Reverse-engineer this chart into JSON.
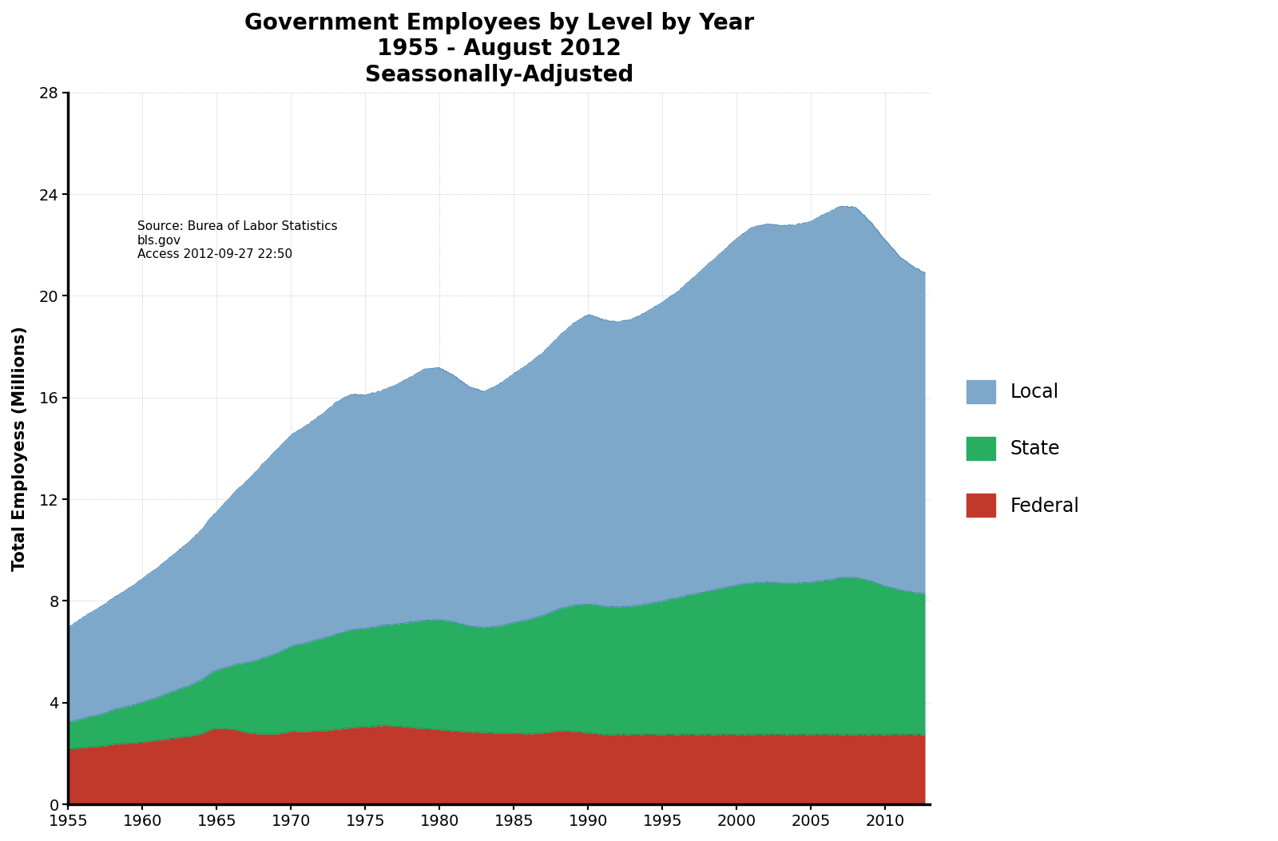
{
  "title": "Government Employees by Level by Year\n1955 - August 2012\nSeassonally-Adjusted",
  "xlabel": "",
  "ylabel": "Total Employess (Millions)",
  "source_text": "Source: Burea of Labor Statistics\nbls.gov\nAccess 2012-09-27 22:50",
  "xlim": [
    1955,
    2013
  ],
  "ylim": [
    0,
    28
  ],
  "yticks": [
    0,
    4,
    8,
    12,
    16,
    20,
    24,
    28
  ],
  "xticks": [
    1955,
    1960,
    1965,
    1970,
    1975,
    1980,
    1985,
    1990,
    1995,
    2000,
    2005,
    2010
  ],
  "colors": {
    "federal": "#c0392b",
    "state": "#27ae60",
    "local": "#7ea8c9",
    "local_line": "#4a86b8",
    "state_line": "#1a8a50",
    "grid": "#c8c8c8",
    "background": "#ffffff"
  },
  "legend": [
    {
      "label": "Local",
      "color": "#7ea8c9"
    },
    {
      "label": "State",
      "color": "#27ae60"
    },
    {
      "label": "Federal",
      "color": "#c0392b"
    }
  ],
  "federal_monthly": [
    2.187,
    2.19,
    2.194,
    2.198,
    2.201,
    2.205,
    2.208,
    2.212,
    2.215,
    2.219,
    2.222,
    2.226,
    2.23,
    2.234,
    2.238,
    2.241,
    2.245,
    2.249,
    2.253,
    2.256,
    2.26,
    2.264,
    2.268,
    2.271,
    2.275,
    2.28,
    2.285,
    2.29,
    2.295,
    2.3,
    2.31,
    2.32,
    2.33,
    2.34,
    2.35,
    2.36,
    2.365,
    2.37,
    2.375,
    2.38,
    2.38,
    2.382,
    2.384,
    2.386,
    2.388,
    2.39,
    2.392,
    2.394,
    2.396,
    2.398,
    2.4,
    2.403,
    2.406,
    2.41,
    2.415,
    2.42,
    2.425,
    2.43,
    2.435,
    2.44,
    2.448,
    2.456,
    2.464,
    2.472,
    2.48,
    2.486,
    2.492,
    2.498,
    2.504,
    2.51,
    2.516,
    2.522,
    2.528,
    2.534,
    2.54,
    2.546,
    2.552,
    2.558,
    2.564,
    2.57,
    2.576,
    2.582,
    2.588,
    2.594,
    2.6,
    2.606,
    2.612,
    2.618,
    2.624,
    2.63,
    2.636,
    2.642,
    2.648,
    2.654,
    2.66,
    2.666,
    2.672,
    2.678,
    2.684,
    2.69,
    2.696,
    2.702,
    2.714,
    2.726,
    2.738,
    2.75,
    2.762,
    2.774,
    2.79,
    2.81,
    2.83,
    2.854,
    2.874,
    2.894,
    2.914,
    2.934,
    2.954,
    2.974,
    2.994,
    2.99,
    2.99,
    2.988,
    2.986,
    2.984,
    2.982,
    2.98,
    2.976,
    2.972,
    2.968,
    2.964,
    2.96,
    2.956,
    2.952,
    2.948,
    2.944,
    2.94,
    2.928,
    2.916,
    2.904,
    2.892,
    2.88,
    2.868,
    2.856,
    2.844,
    2.832,
    2.82,
    2.808,
    2.796,
    2.8,
    2.796,
    2.792,
    2.788,
    2.784,
    2.78,
    2.778,
    2.776,
    2.774,
    2.772,
    2.77,
    2.768,
    2.766,
    2.764,
    2.762,
    2.76,
    2.76,
    2.762,
    2.764,
    2.766,
    2.77,
    2.776,
    2.782,
    2.788,
    2.794,
    2.8,
    2.81,
    2.82,
    2.83,
    2.84,
    2.85,
    2.856,
    2.862,
    2.868,
    2.874,
    2.88,
    2.878,
    2.876,
    2.874,
    2.872,
    2.87,
    2.868,
    2.866,
    2.864,
    2.862,
    2.868,
    2.874,
    2.878,
    2.88,
    2.882,
    2.884,
    2.886,
    2.888,
    2.89,
    2.892,
    2.894,
    2.896,
    2.898,
    2.9,
    2.902,
    2.904,
    2.906,
    2.912,
    2.918,
    2.924,
    2.93,
    2.936,
    2.942,
    2.948,
    2.954,
    2.96,
    2.966,
    2.972,
    2.978,
    2.984,
    2.99,
    2.996,
    3.002,
    3.008,
    3.014,
    3.018,
    3.022,
    3.024,
    3.026,
    3.028,
    3.03,
    3.032,
    3.034,
    3.036,
    3.038,
    3.04,
    3.042,
    3.044,
    3.048,
    3.052,
    3.056,
    3.06,
    3.064,
    3.068,
    3.072,
    3.076,
    3.08,
    3.084,
    3.088,
    3.092,
    3.096,
    3.1,
    3.098,
    3.096,
    3.094,
    3.092,
    3.09,
    3.088,
    3.086,
    3.084,
    3.082,
    3.08,
    3.076,
    3.072,
    3.068,
    3.064,
    3.06,
    3.056,
    3.052,
    3.048,
    3.044,
    3.04,
    3.036,
    3.032,
    3.028,
    3.024,
    3.02,
    3.016,
    3.012,
    3.008,
    3.004,
    3.0,
    2.996,
    2.992,
    2.988,
    2.984,
    2.98,
    2.976,
    2.972,
    2.968,
    2.964,
    2.96,
    2.956,
    2.952,
    2.948,
    2.944,
    2.94,
    2.936,
    2.932,
    2.928,
    2.924,
    2.92,
    2.916,
    2.912,
    2.908,
    2.904,
    2.9,
    2.896,
    2.892,
    2.888,
    2.884,
    2.88,
    2.876,
    2.872,
    2.868,
    2.866,
    2.864,
    2.862,
    2.86,
    2.858,
    2.856,
    2.854,
    2.852,
    2.85,
    2.848,
    2.846,
    2.844,
    2.842,
    2.84,
    2.838,
    2.836,
    2.834,
    2.832,
    2.83,
    2.828,
    2.826,
    2.824,
    2.822,
    2.82,
    2.818,
    2.816,
    2.814,
    2.812,
    2.81,
    2.808,
    2.806,
    2.804,
    2.802,
    2.8,
    2.8,
    2.8,
    2.8,
    2.8,
    2.8,
    2.8,
    2.8,
    2.798,
    2.796,
    2.794,
    2.792,
    2.79,
    2.788,
    2.786,
    2.784,
    2.782,
    2.78,
    2.778,
    2.776,
    2.776,
    2.776,
    2.776,
    2.776,
    2.778,
    2.78,
    2.784,
    2.788,
    2.792,
    2.796,
    2.8,
    2.804,
    2.808,
    2.812,
    2.818,
    2.824,
    2.83,
    2.836,
    2.844,
    2.852,
    2.86,
    2.868,
    2.876,
    2.884,
    2.89,
    2.895,
    2.898,
    2.9,
    2.898,
    2.896,
    2.894,
    2.892,
    2.89,
    2.888,
    2.884,
    2.88,
    2.876,
    2.872,
    2.868,
    2.864,
    2.86,
    2.856,
    2.852,
    2.848,
    2.844,
    2.84,
    2.836,
    2.832,
    2.826,
    2.82,
    2.814,
    2.808,
    2.802,
    2.796,
    2.79,
    2.784,
    2.778,
    2.772,
    2.766,
    2.76,
    2.754,
    2.75,
    2.748,
    2.746,
    2.744,
    2.742,
    2.74,
    2.738,
    2.736,
    2.734,
    2.752,
    2.75
  ],
  "state_monthly_key": [
    [
      1955.0,
      1.05
    ],
    [
      1956.0,
      1.15
    ],
    [
      1957.0,
      1.25
    ],
    [
      1958.0,
      1.35
    ],
    [
      1959.0,
      1.46
    ],
    [
      1960.0,
      1.57
    ],
    [
      1961.0,
      1.7
    ],
    [
      1962.0,
      1.84
    ],
    [
      1963.0,
      1.98
    ],
    [
      1964.0,
      2.13
    ],
    [
      1965.0,
      2.29
    ],
    [
      1966.0,
      2.51
    ],
    [
      1967.0,
      2.74
    ],
    [
      1968.0,
      2.97
    ],
    [
      1969.0,
      3.18
    ],
    [
      1970.0,
      3.35
    ],
    [
      1971.0,
      3.5
    ],
    [
      1972.0,
      3.62
    ],
    [
      1973.0,
      3.75
    ],
    [
      1974.0,
      3.85
    ],
    [
      1975.0,
      3.88
    ],
    [
      1976.0,
      3.93
    ],
    [
      1977.0,
      4.01
    ],
    [
      1978.0,
      4.14
    ],
    [
      1979.0,
      4.26
    ],
    [
      1980.0,
      4.33
    ],
    [
      1981.0,
      4.28
    ],
    [
      1982.0,
      4.17
    ],
    [
      1983.0,
      4.12
    ],
    [
      1984.0,
      4.22
    ],
    [
      1985.0,
      4.36
    ],
    [
      1986.0,
      4.5
    ],
    [
      1987.0,
      4.64
    ],
    [
      1988.0,
      4.79
    ],
    [
      1989.0,
      4.95
    ],
    [
      1990.0,
      5.07
    ],
    [
      1991.0,
      5.05
    ],
    [
      1992.0,
      5.02
    ],
    [
      1993.0,
      5.05
    ],
    [
      1994.0,
      5.14
    ],
    [
      1995.0,
      5.26
    ],
    [
      1996.0,
      5.38
    ],
    [
      1997.0,
      5.51
    ],
    [
      1998.0,
      5.63
    ],
    [
      1999.0,
      5.76
    ],
    [
      2000.0,
      5.88
    ],
    [
      2001.0,
      5.97
    ],
    [
      2002.0,
      5.99
    ],
    [
      2003.0,
      5.95
    ],
    [
      2004.0,
      5.95
    ],
    [
      2005.0,
      5.99
    ],
    [
      2006.0,
      6.07
    ],
    [
      2007.0,
      6.17
    ],
    [
      2008.0,
      6.18
    ],
    [
      2009.0,
      6.04
    ],
    [
      2010.0,
      5.84
    ],
    [
      2011.0,
      5.68
    ],
    [
      2012.0,
      5.58
    ],
    [
      2012.667,
      5.55
    ]
  ],
  "local_monthly_key": [
    [
      1955.0,
      3.72
    ],
    [
      1956.0,
      3.96
    ],
    [
      1957.0,
      4.18
    ],
    [
      1958.0,
      4.38
    ],
    [
      1959.0,
      4.6
    ],
    [
      1960.0,
      4.85
    ],
    [
      1961.0,
      5.08
    ],
    [
      1962.0,
      5.33
    ],
    [
      1963.0,
      5.6
    ],
    [
      1964.0,
      5.9
    ],
    [
      1965.0,
      6.22
    ],
    [
      1966.0,
      6.68
    ],
    [
      1967.0,
      7.13
    ],
    [
      1968.0,
      7.58
    ],
    [
      1969.0,
      7.98
    ],
    [
      1970.0,
      8.3
    ],
    [
      1971.0,
      8.52
    ],
    [
      1972.0,
      8.78
    ],
    [
      1973.0,
      9.1
    ],
    [
      1974.0,
      9.25
    ],
    [
      1975.0,
      9.18
    ],
    [
      1976.0,
      9.22
    ],
    [
      1977.0,
      9.38
    ],
    [
      1978.0,
      9.62
    ],
    [
      1979.0,
      9.88
    ],
    [
      1980.0,
      9.9
    ],
    [
      1981.0,
      9.68
    ],
    [
      1982.0,
      9.4
    ],
    [
      1983.0,
      9.28
    ],
    [
      1984.0,
      9.5
    ],
    [
      1985.0,
      9.78
    ],
    [
      1986.0,
      10.06
    ],
    [
      1987.0,
      10.34
    ],
    [
      1988.0,
      10.7
    ],
    [
      1989.0,
      11.08
    ],
    [
      1990.0,
      11.38
    ],
    [
      1991.0,
      11.26
    ],
    [
      1992.0,
      11.2
    ],
    [
      1993.0,
      11.28
    ],
    [
      1994.0,
      11.5
    ],
    [
      1995.0,
      11.74
    ],
    [
      1996.0,
      12.02
    ],
    [
      1997.0,
      12.4
    ],
    [
      1998.0,
      12.82
    ],
    [
      1999.0,
      13.2
    ],
    [
      2000.0,
      13.62
    ],
    [
      2001.0,
      13.96
    ],
    [
      2002.0,
      14.08
    ],
    [
      2003.0,
      14.06
    ],
    [
      2004.0,
      14.08
    ],
    [
      2005.0,
      14.18
    ],
    [
      2006.0,
      14.42
    ],
    [
      2007.0,
      14.6
    ],
    [
      2008.0,
      14.54
    ],
    [
      2009.0,
      14.12
    ],
    [
      2010.0,
      13.6
    ],
    [
      2011.0,
      13.08
    ],
    [
      2011.5,
      12.92
    ],
    [
      2012.0,
      12.76
    ],
    [
      2012.667,
      12.6
    ]
  ]
}
